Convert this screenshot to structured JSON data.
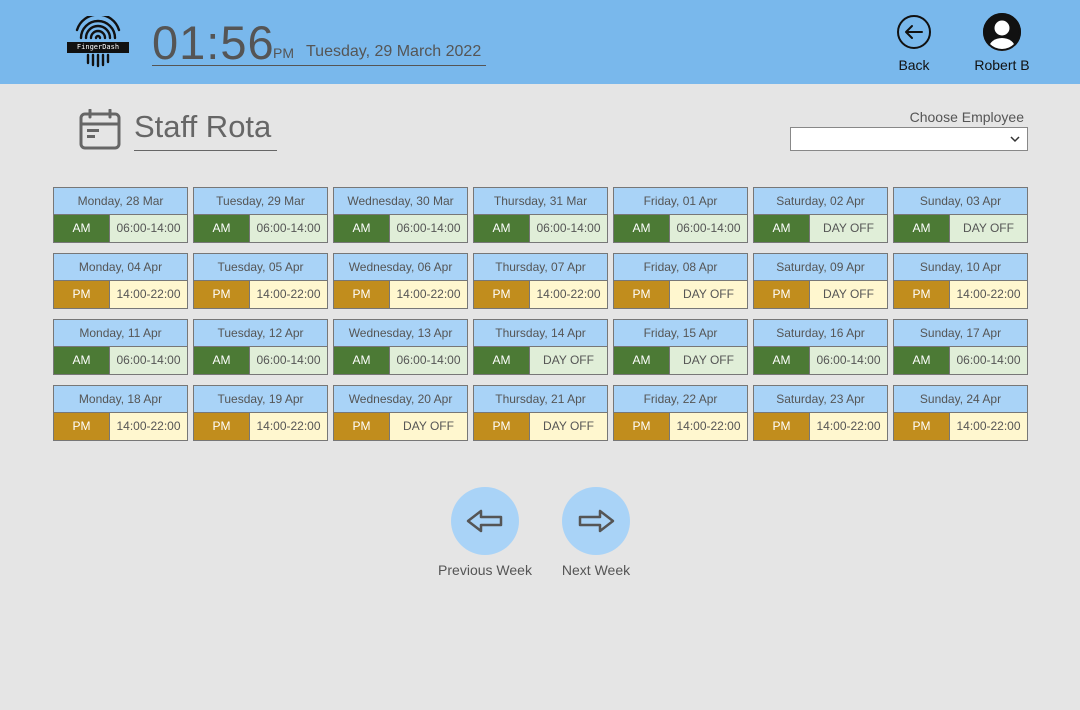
{
  "header": {
    "logo_text": "FingerDash",
    "time": "01:56",
    "ampm": "PM",
    "date": "Tuesday, 29 March 2022",
    "back_label": "Back",
    "user_name": "Robert B",
    "accent_color": "#79b8ec"
  },
  "page": {
    "title": "Staff Rota",
    "employee_label": "Choose Employee",
    "employee_selected": ""
  },
  "colors": {
    "am": "#4c7a35",
    "pm": "#c18d1d",
    "day_header": "#a9d3f7"
  },
  "rota": [
    {
      "day": "Monday, 28 Mar",
      "shift": "AM",
      "hours": "06:00-14:00"
    },
    {
      "day": "Tuesday, 29 Mar",
      "shift": "AM",
      "hours": "06:00-14:00"
    },
    {
      "day": "Wednesday, 30 Mar",
      "shift": "AM",
      "hours": "06:00-14:00"
    },
    {
      "day": "Thursday, 31 Mar",
      "shift": "AM",
      "hours": "06:00-14:00"
    },
    {
      "day": "Friday, 01 Apr",
      "shift": "AM",
      "hours": "06:00-14:00"
    },
    {
      "day": "Saturday, 02 Apr",
      "shift": "AM",
      "hours": "DAY OFF"
    },
    {
      "day": "Sunday, 03 Apr",
      "shift": "AM",
      "hours": "DAY OFF"
    },
    {
      "day": "Monday, 04 Apr",
      "shift": "PM",
      "hours": "14:00-22:00"
    },
    {
      "day": "Tuesday, 05 Apr",
      "shift": "PM",
      "hours": "14:00-22:00"
    },
    {
      "day": "Wednesday, 06 Apr",
      "shift": "PM",
      "hours": "14:00-22:00"
    },
    {
      "day": "Thursday, 07 Apr",
      "shift": "PM",
      "hours": "14:00-22:00"
    },
    {
      "day": "Friday, 08 Apr",
      "shift": "PM",
      "hours": "DAY OFF"
    },
    {
      "day": "Saturday, 09 Apr",
      "shift": "PM",
      "hours": "DAY OFF"
    },
    {
      "day": "Sunday, 10 Apr",
      "shift": "PM",
      "hours": "14:00-22:00"
    },
    {
      "day": "Monday, 11 Apr",
      "shift": "AM",
      "hours": "06:00-14:00"
    },
    {
      "day": "Tuesday, 12 Apr",
      "shift": "AM",
      "hours": "06:00-14:00"
    },
    {
      "day": "Wednesday, 13 Apr",
      "shift": "AM",
      "hours": "06:00-14:00"
    },
    {
      "day": "Thursday, 14 Apr",
      "shift": "AM",
      "hours": "DAY OFF"
    },
    {
      "day": "Friday, 15 Apr",
      "shift": "AM",
      "hours": "DAY OFF"
    },
    {
      "day": "Saturday, 16 Apr",
      "shift": "AM",
      "hours": "06:00-14:00"
    },
    {
      "day": "Sunday, 17 Apr",
      "shift": "AM",
      "hours": "06:00-14:00"
    },
    {
      "day": "Monday, 18 Apr",
      "shift": "PM",
      "hours": "14:00-22:00"
    },
    {
      "day": "Tuesday, 19 Apr",
      "shift": "PM",
      "hours": "14:00-22:00"
    },
    {
      "day": "Wednesday, 20 Apr",
      "shift": "PM",
      "hours": "DAY OFF"
    },
    {
      "day": "Thursday, 21 Apr",
      "shift": "PM",
      "hours": "DAY OFF"
    },
    {
      "day": "Friday, 22 Apr",
      "shift": "PM",
      "hours": "14:00-22:00"
    },
    {
      "day": "Saturday, 23 Apr",
      "shift": "PM",
      "hours": "14:00-22:00"
    },
    {
      "day": "Sunday, 24 Apr",
      "shift": "PM",
      "hours": "14:00-22:00"
    }
  ],
  "nav": {
    "prev_label": "Previous Week",
    "next_label": "Next Week"
  },
  "icons": {
    "logo": "fingerprint-icon",
    "back": "arrow-left-circle-icon",
    "user": "user-circle-icon",
    "page": "calendar-card-icon",
    "prev": "arrow-left-outline-icon",
    "next": "arrow-right-outline-icon",
    "select": "chevron-down-icon"
  }
}
